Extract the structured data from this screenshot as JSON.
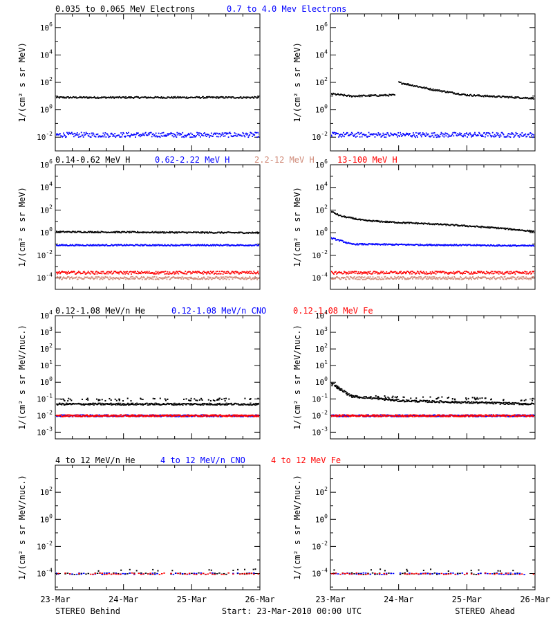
{
  "colors": {
    "black": "#000000",
    "blue": "#0000ff",
    "salmon": "#d08a78",
    "red": "#ff0000"
  },
  "rows": [
    {
      "legend": [
        {
          "text": "0.035 to 0.065 MeV Electrons",
          "color": "#000000"
        },
        {
          "text": "0.7 to 4.0 Mev Electrons",
          "color": "#0000ff"
        }
      ],
      "ylabel": "1/(cm² s sr MeV)",
      "scale": "log",
      "ylim_exp": [
        -3,
        7
      ],
      "tick_exps": [
        -2,
        0,
        2,
        4,
        6
      ]
    },
    {
      "legend": [
        {
          "text": "0.14-0.62 MeV H",
          "color": "#000000"
        },
        {
          "text": "0.62-2.22 MeV H",
          "color": "#0000ff"
        },
        {
          "text": "2.2-12 MeV H",
          "color": "#d08a78"
        },
        {
          "text": "13-100 MeV H",
          "color": "#ff0000"
        }
      ],
      "ylabel": "1/(cm² s sr MeV)",
      "scale": "log",
      "ylim_exp": [
        -5,
        6
      ],
      "tick_exps": [
        -4,
        -2,
        0,
        2,
        4,
        6
      ]
    },
    {
      "legend": [
        {
          "text": "0.12-1.08 MeV/n He",
          "color": "#000000"
        },
        {
          "text": "0.12-1.08 MeV/n CNO",
          "color": "#0000ff"
        },
        {
          "text": "0.12-1.08 MeV Fe",
          "color": "#ff0000"
        }
      ],
      "ylabel": "1/(cm² s sr MeV/nuc.)",
      "scale": "log",
      "ylim_exp": [
        -3.4,
        4
      ],
      "tick_exps": [
        -3,
        -2,
        -1,
        0,
        1,
        2,
        3,
        4
      ]
    },
    {
      "legend": [
        {
          "text": "4 to 12 MeV/n He",
          "color": "#000000"
        },
        {
          "text": "4 to 12 MeV/n CNO",
          "color": "#0000ff"
        },
        {
          "text": "4 to 12 MeV Fe",
          "color": "#ff0000"
        }
      ],
      "ylabel": "1/(cm² s sr MeV/nuc.)",
      "scale": "log",
      "ylim_exp": [
        -5.2,
        4
      ],
      "tick_exps": [
        -4,
        -2,
        0,
        2
      ]
    }
  ],
  "x_tick_labels": [
    "23-Mar",
    "24-Mar",
    "25-Mar",
    "26-Mar"
  ],
  "x_range_days": [
    0,
    3
  ],
  "footer": {
    "left": "STEREO Behind",
    "center": "Start: 23-Mar-2010 00:00 UTC",
    "right": "STEREO Ahead"
  },
  "chart_data": [
    {
      "type": "scatter",
      "panel": "behind-electrons",
      "xlim": [
        0,
        3
      ],
      "scale": "log",
      "ylim": [
        0.001,
        10000000
      ],
      "series": [
        {
          "name": "0.035 to 0.065 MeV Electrons",
          "x": [
            0,
            3
          ],
          "y": [
            8,
            8
          ]
        },
        {
          "name": "0.7 to 4.0 Mev Electrons",
          "x": [
            0,
            3
          ],
          "y": [
            0.015,
            0.015
          ]
        }
      ]
    },
    {
      "type": "scatter",
      "panel": "ahead-electrons",
      "xlim": [
        0,
        3
      ],
      "scale": "log",
      "ylim": [
        0.001,
        10000000
      ],
      "series": [
        {
          "name": "0.035 to 0.065 MeV Electrons",
          "x": [
            0,
            0.3,
            0.95,
            1.0,
            1.5,
            2.0,
            2.5,
            3.0
          ],
          "y": [
            15,
            10,
            12,
            100,
            30,
            12,
            9,
            7
          ]
        },
        {
          "name": "0.7 to 4.0 Mev Electrons",
          "x": [
            0,
            3
          ],
          "y": [
            0.015,
            0.015
          ]
        }
      ]
    },
    {
      "type": "scatter",
      "panel": "behind-protons",
      "xlim": [
        0,
        3
      ],
      "scale": "log",
      "ylim": [
        1e-05,
        1000000
      ],
      "series": [
        {
          "name": "0.14-0.62 MeV H",
          "x": [
            0,
            3
          ],
          "y": [
            1.2,
            1.0
          ]
        },
        {
          "name": "0.62-2.22 MeV H",
          "x": [
            0,
            3
          ],
          "y": [
            0.08,
            0.08
          ]
        },
        {
          "name": "2.2-12 MeV H",
          "x": [
            0,
            3
          ],
          "y": [
            0.0001,
            0.0001
          ]
        },
        {
          "name": "13-100 MeV H",
          "x": [
            0,
            3
          ],
          "y": [
            0.0003,
            0.0003
          ]
        }
      ]
    },
    {
      "type": "scatter",
      "panel": "ahead-protons",
      "xlim": [
        0,
        3
      ],
      "scale": "log",
      "ylim": [
        1e-05,
        1000000
      ],
      "series": [
        {
          "name": "0.14-0.62 MeV H",
          "x": [
            0,
            0.15,
            0.5,
            1.0,
            1.5,
            2.0,
            2.5,
            3.0
          ],
          "y": [
            80,
            30,
            12,
            8,
            6,
            4,
            2.5,
            1.3
          ]
        },
        {
          "name": "0.62-2.22 MeV H",
          "x": [
            0,
            0.15,
            0.3,
            1.0,
            2.0,
            3.0
          ],
          "y": [
            0.35,
            0.2,
            0.1,
            0.09,
            0.08,
            0.07
          ]
        },
        {
          "name": "2.2-12 MeV H",
          "x": [
            0,
            3
          ],
          "y": [
            0.0001,
            0.0001
          ]
        },
        {
          "name": "13-100 MeV H",
          "x": [
            0,
            3
          ],
          "y": [
            0.0003,
            0.0003
          ]
        }
      ]
    },
    {
      "type": "scatter",
      "panel": "behind-heavy-low",
      "xlim": [
        0,
        3
      ],
      "scale": "log",
      "ylim": [
        0.0004,
        10000
      ],
      "series": [
        {
          "name": "0.12-1.08 MeV/n He",
          "x": [
            0,
            3
          ],
          "y": [
            0.05,
            0.05
          ]
        },
        {
          "name": "0.12-1.08 MeV/n CNO",
          "x": [
            0,
            3
          ],
          "y": [
            0.01,
            0.01
          ]
        },
        {
          "name": "0.12-1.08 MeV Fe",
          "x": [
            0,
            3
          ],
          "y": [
            0.01,
            0.01
          ]
        }
      ]
    },
    {
      "type": "scatter",
      "panel": "ahead-heavy-low",
      "xlim": [
        0,
        3
      ],
      "scale": "log",
      "ylim": [
        0.0004,
        10000
      ],
      "series": [
        {
          "name": "0.12-1.08 MeV/n He",
          "x": [
            0,
            0.1,
            0.3,
            1.0,
            3.0
          ],
          "y": [
            1.0,
            0.5,
            0.15,
            0.08,
            0.05
          ]
        },
        {
          "name": "0.12-1.08 MeV/n CNO",
          "x": [
            0,
            3
          ],
          "y": [
            0.01,
            0.01
          ]
        },
        {
          "name": "0.12-1.08 MeV Fe",
          "x": [
            0,
            3
          ],
          "y": [
            0.01,
            0.01
          ]
        }
      ]
    },
    {
      "type": "scatter",
      "panel": "behind-heavy-high",
      "xlim": [
        0,
        3
      ],
      "scale": "log",
      "ylim": [
        6e-06,
        10000
      ],
      "series": [
        {
          "name": "4 to 12 MeV/n He",
          "x": [
            0,
            3
          ],
          "y": [
            0.0001,
            0.0001
          ]
        },
        {
          "name": "4 to 12 MeV/n CNO",
          "x": [
            0,
            3
          ],
          "y": [
            0.0001,
            0.0001
          ]
        },
        {
          "name": "4 to 12 MeV Fe",
          "x": [
            0,
            3
          ],
          "y": [
            0.0001,
            0.0001
          ]
        }
      ]
    },
    {
      "type": "scatter",
      "panel": "ahead-heavy-high",
      "xlim": [
        0,
        3
      ],
      "scale": "log",
      "ylim": [
        6e-06,
        10000
      ],
      "series": [
        {
          "name": "4 to 12 MeV/n He",
          "x": [
            0,
            3
          ],
          "y": [
            0.0001,
            0.0001
          ]
        },
        {
          "name": "4 to 12 MeV/n CNO",
          "x": [
            0,
            3
          ],
          "y": [
            0.0001,
            0.0001
          ]
        },
        {
          "name": "4 to 12 MeV Fe",
          "x": [
            0,
            3
          ],
          "y": [
            0.0001,
            0.0001
          ]
        }
      ]
    }
  ]
}
